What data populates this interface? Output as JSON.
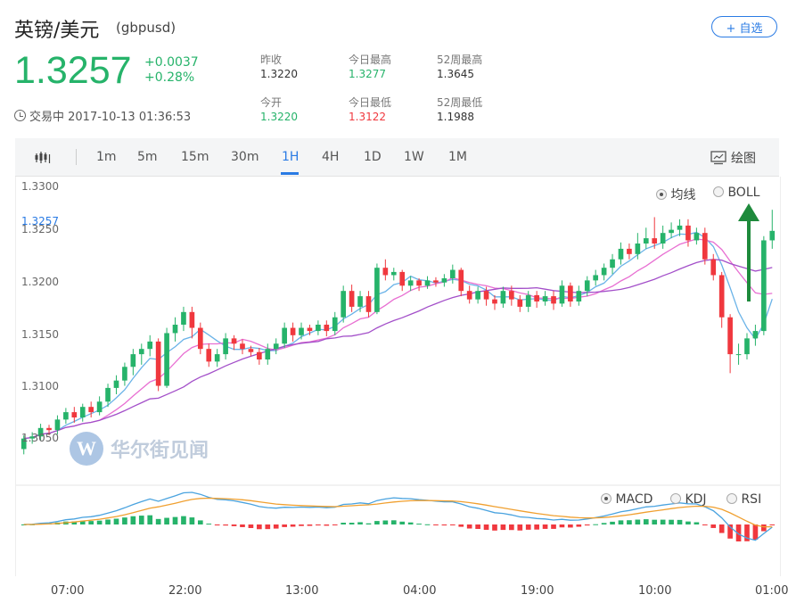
{
  "header": {
    "name": "英镑/美元",
    "code": "(gbpusd)",
    "watch_label": "+ 自选",
    "price": "1.3257",
    "change": "+0.0037",
    "change_pct": "+0.28%",
    "status": "交易中 2017-10-13 01:36:53"
  },
  "stats": {
    "prev_close_label": "昨收",
    "prev_close": "1.3220",
    "open_label": "今开",
    "open": "1.3220",
    "day_high_label": "今日最高",
    "day_high": "1.3277",
    "day_low_label": "今日最低",
    "day_low": "1.3122",
    "wk52_high_label": "52周最高",
    "wk52_high": "1.3645",
    "wk52_low_label": "52周最低",
    "wk52_low": "1.1988"
  },
  "toolbar": {
    "periods": [
      "1m",
      "5m",
      "15m",
      "30m",
      "1H",
      "4H",
      "1D",
      "1W",
      "1M"
    ],
    "active": "1H",
    "draw_label": "绘图"
  },
  "chart": {
    "overlay_options": [
      "均线",
      "BOLL"
    ],
    "overlay_selected": "均线",
    "indicator_options": [
      "MACD",
      "KDJ",
      "RSI"
    ],
    "indicator_selected": "MACD",
    "current_price_label": "1.3257",
    "watermark": "华尔街见闻",
    "y_ticks": [
      "1.3300",
      "1.3250",
      "1.3200",
      "1.3150",
      "1.3100",
      "1.3050"
    ],
    "x_ticks": [
      "07:00",
      "22:00",
      "13:00",
      "04:00",
      "19:00",
      "10:00",
      "01:00"
    ]
  },
  "colors": {
    "up": "#26b36a",
    "down": "#f0383e",
    "accent": "#2a7be4"
  },
  "chart_data": {
    "type": "candlestick",
    "ylim": [
      1.3025,
      1.33
    ],
    "candles": [
      [
        1.305,
        1.306,
        1.3045,
        1.3063
      ],
      [
        1.306,
        1.3062,
        1.3055,
        1.3066
      ],
      [
        1.3062,
        1.307,
        1.3058,
        1.3074
      ],
      [
        1.307,
        1.3068,
        1.3063,
        1.3073
      ],
      [
        1.3068,
        1.3078,
        1.3064,
        1.3082
      ],
      [
        1.3078,
        1.3085,
        1.3074,
        1.3089
      ],
      [
        1.3085,
        1.308,
        1.3075,
        1.309
      ],
      [
        1.308,
        1.309,
        1.3076,
        1.3093
      ],
      [
        1.309,
        1.3085,
        1.308,
        1.3095
      ],
      [
        1.3085,
        1.3095,
        1.3082,
        1.31
      ],
      [
        1.3095,
        1.3108,
        1.309,
        1.3112
      ],
      [
        1.3108,
        1.3115,
        1.3102,
        1.312
      ],
      [
        1.3115,
        1.3128,
        1.311,
        1.3132
      ],
      [
        1.3128,
        1.314,
        1.312,
        1.3145
      ],
      [
        1.314,
        1.3145,
        1.313,
        1.315
      ],
      [
        1.3145,
        1.3152,
        1.3138,
        1.3158
      ],
      [
        1.3152,
        1.311,
        1.3105,
        1.3155
      ],
      [
        1.311,
        1.316,
        1.3108,
        1.3165
      ],
      [
        1.316,
        1.3168,
        1.3152,
        1.3175
      ],
      [
        1.3168,
        1.318,
        1.3162,
        1.3185
      ],
      [
        1.318,
        1.3165,
        1.3155,
        1.3185
      ],
      [
        1.3165,
        1.3145,
        1.314,
        1.317
      ],
      [
        1.3145,
        1.3133,
        1.3128,
        1.315
      ],
      [
        1.3133,
        1.314,
        1.3128,
        1.3145
      ],
      [
        1.314,
        1.3155,
        1.3135,
        1.316
      ],
      [
        1.3155,
        1.315,
        1.3144,
        1.3158
      ],
      [
        1.315,
        1.3145,
        1.314,
        1.3154
      ],
      [
        1.3145,
        1.3142,
        1.3138,
        1.3148
      ],
      [
        1.3142,
        1.3135,
        1.313,
        1.3146
      ],
      [
        1.3135,
        1.3145,
        1.313,
        1.315
      ],
      [
        1.3145,
        1.315,
        1.314,
        1.3155
      ],
      [
        1.315,
        1.3165,
        1.3146,
        1.317
      ],
      [
        1.3165,
        1.3158,
        1.3152,
        1.317
      ],
      [
        1.3158,
        1.3165,
        1.3154,
        1.317
      ],
      [
        1.3165,
        1.3162,
        1.3158,
        1.3168
      ],
      [
        1.3162,
        1.3168,
        1.3158,
        1.3172
      ],
      [
        1.3168,
        1.3162,
        1.3157,
        1.3172
      ],
      [
        1.3162,
        1.3175,
        1.3158,
        1.318
      ],
      [
        1.3175,
        1.32,
        1.317,
        1.3205
      ],
      [
        1.32,
        1.3185,
        1.318,
        1.3206
      ],
      [
        1.3185,
        1.3195,
        1.318,
        1.32
      ],
      [
        1.3195,
        1.318,
        1.3175,
        1.32
      ],
      [
        1.318,
        1.3222,
        1.3178,
        1.3226
      ],
      [
        1.3222,
        1.3215,
        1.321,
        1.323
      ],
      [
        1.3215,
        1.3218,
        1.321,
        1.3222
      ],
      [
        1.3218,
        1.3205,
        1.32,
        1.322
      ],
      [
        1.3205,
        1.321,
        1.32,
        1.3214
      ],
      [
        1.321,
        1.3205,
        1.32,
        1.3212
      ],
      [
        1.3205,
        1.321,
        1.3202,
        1.3214
      ],
      [
        1.321,
        1.3208,
        1.3204,
        1.3213
      ],
      [
        1.3208,
        1.3212,
        1.3204,
        1.3216
      ],
      [
        1.3212,
        1.322,
        1.3207,
        1.3225
      ],
      [
        1.322,
        1.32,
        1.3195,
        1.3222
      ],
      [
        1.32,
        1.3192,
        1.3188,
        1.3205
      ],
      [
        1.3192,
        1.32,
        1.3188,
        1.3204
      ],
      [
        1.32,
        1.3192,
        1.3186,
        1.3204
      ],
      [
        1.3192,
        1.3188,
        1.3182,
        1.3196
      ],
      [
        1.3188,
        1.32,
        1.3184,
        1.3204
      ],
      [
        1.32,
        1.3192,
        1.3186,
        1.3205
      ],
      [
        1.3192,
        1.3185,
        1.318,
        1.3196
      ],
      [
        1.3185,
        1.3196,
        1.318,
        1.32
      ],
      [
        1.3196,
        1.319,
        1.3184,
        1.32
      ],
      [
        1.319,
        1.3195,
        1.3186,
        1.32
      ],
      [
        1.3195,
        1.3188,
        1.3182,
        1.32
      ],
      [
        1.3188,
        1.3205,
        1.3185,
        1.321
      ],
      [
        1.3205,
        1.319,
        1.3185,
        1.3208
      ],
      [
        1.319,
        1.32,
        1.3186,
        1.3205
      ],
      [
        1.32,
        1.321,
        1.3195,
        1.3214
      ],
      [
        1.321,
        1.3215,
        1.3205,
        1.322
      ],
      [
        1.3215,
        1.3222,
        1.321,
        1.3226
      ],
      [
        1.3222,
        1.323,
        1.3216,
        1.3235
      ],
      [
        1.323,
        1.324,
        1.3225,
        1.3246
      ],
      [
        1.324,
        1.3235,
        1.323,
        1.3245
      ],
      [
        1.3235,
        1.3245,
        1.323,
        1.3255
      ],
      [
        1.3245,
        1.325,
        1.324,
        1.326
      ],
      [
        1.325,
        1.3245,
        1.324,
        1.327
      ],
      [
        1.3245,
        1.3255,
        1.324,
        1.3262
      ],
      [
        1.3255,
        1.3258,
        1.325,
        1.3265
      ],
      [
        1.3258,
        1.3262,
        1.3252,
        1.3268
      ],
      [
        1.3262,
        1.3248,
        1.3242,
        1.3268
      ],
      [
        1.3248,
        1.3255,
        1.3244,
        1.326
      ],
      [
        1.3255,
        1.323,
        1.3225,
        1.326
      ],
      [
        1.323,
        1.3215,
        1.321,
        1.3235
      ],
      [
        1.3215,
        1.3175,
        1.3165,
        1.3218
      ],
      [
        1.3175,
        1.314,
        1.3122,
        1.3178
      ],
      [
        1.314,
        1.314,
        1.313,
        1.315
      ],
      [
        1.314,
        1.3155,
        1.3135,
        1.316
      ],
      [
        1.3155,
        1.3162,
        1.3148,
        1.3168
      ],
      [
        1.3162,
        1.3248,
        1.3158,
        1.3252
      ],
      [
        1.3248,
        1.3257,
        1.324,
        1.3277
      ]
    ]
  }
}
